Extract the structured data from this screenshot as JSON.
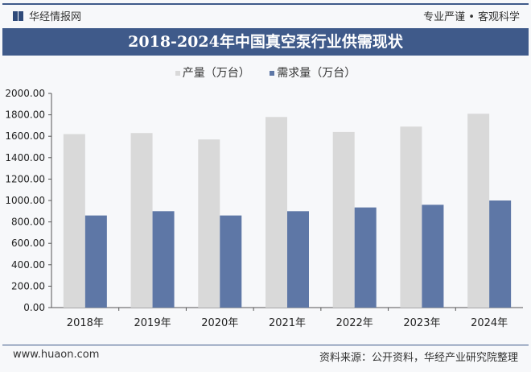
{
  "header": {
    "brand": "华经情报网",
    "slogan": "专业严谨 • 客观科学"
  },
  "footer": {
    "site": "www.huaon.com",
    "source": "资料来源：公开资料，华经产业研究院整理"
  },
  "chart_data": {
    "type": "bar",
    "title": "2018-2024年中国真空泵行业供需现状",
    "categories": [
      "2018年",
      "2019年",
      "2020年",
      "2021年",
      "2022年",
      "2023年",
      "2024年"
    ],
    "series": [
      {
        "name": "产量（万台）",
        "color": "#d9d9d9",
        "values": [
          1620,
          1630,
          1570,
          1780,
          1640,
          1690,
          1810
        ]
      },
      {
        "name": "需求量（万台）",
        "color": "#5e77a6",
        "values": [
          860,
          900,
          860,
          900,
          935,
          960,
          1000
        ]
      }
    ],
    "ylim": [
      0,
      2000
    ],
    "yticks": [
      "0.00",
      "200.00",
      "400.00",
      "600.00",
      "800.00",
      "1000.00",
      "1200.00",
      "1400.00",
      "1600.00",
      "1800.00",
      "2000.00"
    ],
    "legend": "top",
    "grid": false
  }
}
